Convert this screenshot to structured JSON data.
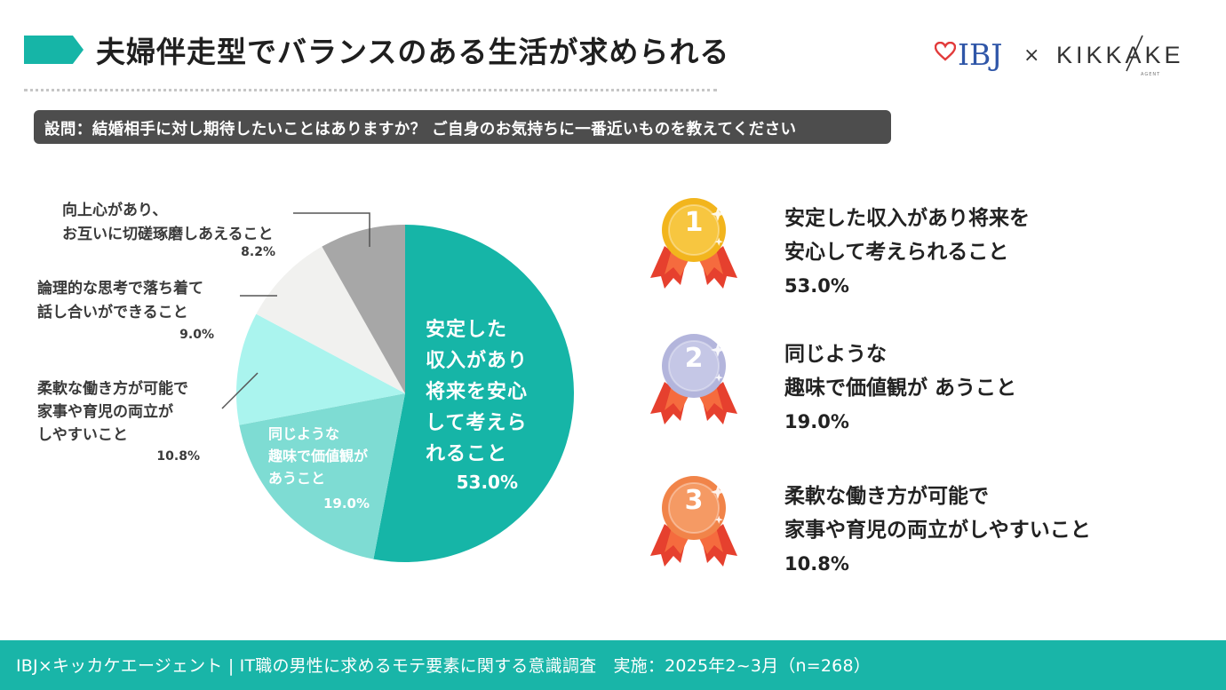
{
  "header": {
    "title": "夫婦伴走型でバランスのある生活が求められる",
    "logo_ibj": "IBJ",
    "logo_cross": "×",
    "logo_kikkake": "KIKKAKE",
    "logo_agent": "AGENT"
  },
  "question": "設問：結婚相手に対し期待したいことはありますか？ ご自身のお気持ちに一番近いものを教えてください",
  "chart_data": {
    "type": "pie",
    "start": "12 o'clock, clockwise",
    "slices": [
      {
        "lines": [
          "安定した",
          "収入があり",
          "将来を安心",
          "して考えら",
          "れること"
        ],
        "pct_label": "53.0%",
        "value": 53.0,
        "color": "#16b5a7",
        "label_position": "inside"
      },
      {
        "lines": [
          "同じような",
          "趣味で価値観が",
          "あうこと"
        ],
        "pct_label": "19.0%",
        "value": 19.0,
        "color": "#7edcd3",
        "label_position": "inside"
      },
      {
        "lines": [
          "柔軟な働き方が可能で",
          "家事や育児の両立が",
          "しやすいこと"
        ],
        "pct_label": "10.8%",
        "value": 10.8,
        "color": "#aaf4ee",
        "label_position": "outside"
      },
      {
        "lines": [
          "論理的な思考で落ち着て",
          "話し合いができること"
        ],
        "pct_label": "9.0%",
        "value": 9.0,
        "color": "#f1f1ef",
        "label_position": "outside"
      },
      {
        "lines": [
          "向上心があり、",
          "お互いに切磋琢磨しあえること"
        ],
        "pct_label": "8.2%",
        "value": 8.2,
        "color": "#a7a7a7",
        "label_position": "outside"
      }
    ]
  },
  "ranking": [
    {
      "rank": "1",
      "medal_color": "#f2b51d",
      "medal_inner": "#f7c640",
      "lines": [
        "安定した収入があり将来を",
        "安心して考えられること"
      ],
      "pct": "53.0%"
    },
    {
      "rank": "2",
      "medal_color": "#b3b5dc",
      "medal_inner": "#c5c7e6",
      "lines": [
        "同じような",
        "趣味で価値観が あうこと"
      ],
      "pct": "19.0%"
    },
    {
      "rank": "3",
      "medal_color": "#f18449",
      "medal_inner": "#f59a64",
      "lines": [
        "柔軟な働き方が可能で",
        "家事や育児の両立がしやすいこと"
      ],
      "pct": "10.8%"
    }
  ],
  "footer": "IBJ×キッカケエージェント | IT職の男性に求めるモテ要素に関する意識調査　実施：2025年2~3月（n=268）"
}
